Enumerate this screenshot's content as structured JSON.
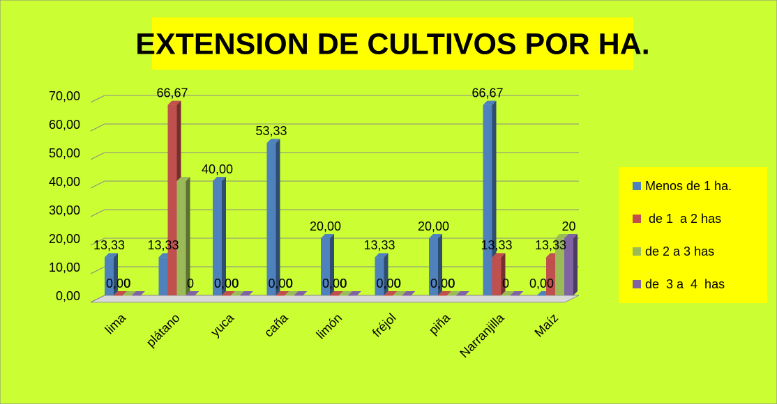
{
  "chart_data": {
    "type": "bar3d",
    "title": "EXTENSION DE CULTIVOS POR HA.",
    "categories": [
      "lima",
      "plátano",
      "yuca",
      "caña",
      "limón",
      "fréjol",
      "piña",
      "Narranjilla",
      "Maíz"
    ],
    "series": [
      {
        "name": "Menos de 1 ha.",
        "color": "#4f81bd",
        "values": [
          13.33,
          13.33,
          40,
          53.33,
          20,
          13.33,
          20,
          66.67,
          0
        ],
        "value_labels": [
          "13,33",
          "13,33",
          "40,00",
          "53,33",
          "20,00",
          "13,33",
          "20,00",
          "66,67",
          "0,00"
        ]
      },
      {
        "name": " de 1  a 2 has",
        "color": "#c0504d",
        "values": [
          0,
          66.67,
          0,
          0,
          0,
          0,
          0,
          13.33,
          13.33
        ],
        "value_labels": [
          "0,00",
          "66,67",
          "0,00",
          "0,00",
          "0,00",
          "0,00",
          "0,00",
          "13,33",
          "13,33"
        ]
      },
      {
        "name": "de 2 a 3 has",
        "color": "#9bbb59",
        "values": [
          0,
          40,
          0,
          0,
          0,
          0,
          0,
          0,
          20
        ],
        "value_labels": [
          "0",
          null,
          "0",
          "0",
          "0",
          "0",
          "0",
          "0",
          null
        ]
      },
      {
        "name": "de  3 a  4  has",
        "color": "#8064a2",
        "values": [
          0,
          0,
          0,
          0,
          0,
          0,
          0,
          0,
          20
        ],
        "value_labels": [
          null,
          "0",
          null,
          null,
          null,
          null,
          null,
          null,
          "20"
        ]
      }
    ],
    "ylim": [
      0,
      70
    ],
    "yticks": [
      {
        "value": 0,
        "label": "0,00"
      },
      {
        "value": 10,
        "label": "10,00"
      },
      {
        "value": 20,
        "label": "20,00"
      },
      {
        "value": 30,
        "label": "30,00"
      },
      {
        "value": 40,
        "label": "40,00"
      },
      {
        "value": 50,
        "label": "50,00"
      },
      {
        "value": 60,
        "label": "60,00"
      },
      {
        "value": 70,
        "label": "70,00"
      }
    ],
    "grid": true,
    "legend": "right"
  }
}
